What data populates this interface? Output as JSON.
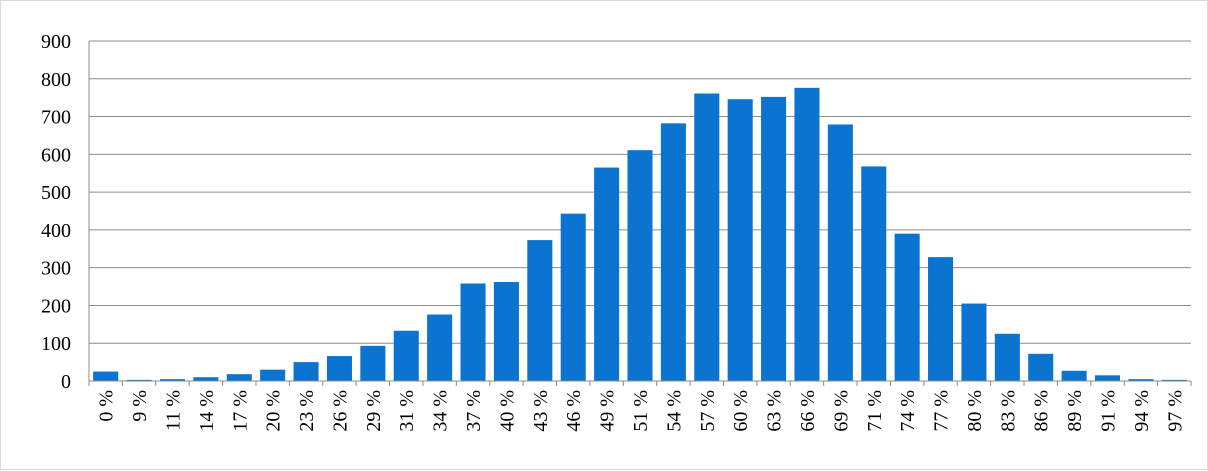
{
  "chart_data": {
    "type": "bar",
    "title": "",
    "xlabel": "",
    "ylabel": "",
    "categories": [
      "0 %",
      "9 %",
      "11 %",
      "14 %",
      "17 %",
      "20 %",
      "23 %",
      "26 %",
      "29 %",
      "31 %",
      "34 %",
      "37 %",
      "40 %",
      "43 %",
      "46 %",
      "49 %",
      "51 %",
      "54 %",
      "57 %",
      "60 %",
      "63 %",
      "66 %",
      "69 %",
      "71 %",
      "74 %",
      "77 %",
      "80 %",
      "83 %",
      "86 %",
      "89 %",
      "91 %",
      "94 %",
      "97 %"
    ],
    "values": [
      25,
      3,
      5,
      10,
      18,
      30,
      50,
      66,
      93,
      133,
      176,
      258,
      262,
      373,
      443,
      565,
      611,
      682,
      761,
      746,
      752,
      776,
      679,
      568,
      390,
      328,
      205,
      125,
      72,
      27,
      15,
      5,
      3
    ],
    "ylim": [
      0,
      900
    ],
    "yticks": [
      0,
      100,
      200,
      300,
      400,
      500,
      600,
      700,
      800,
      900
    ],
    "grid": true,
    "legend": "none",
    "bar_color": "#0a74d0",
    "grid_color": "#8c8c8c"
  }
}
